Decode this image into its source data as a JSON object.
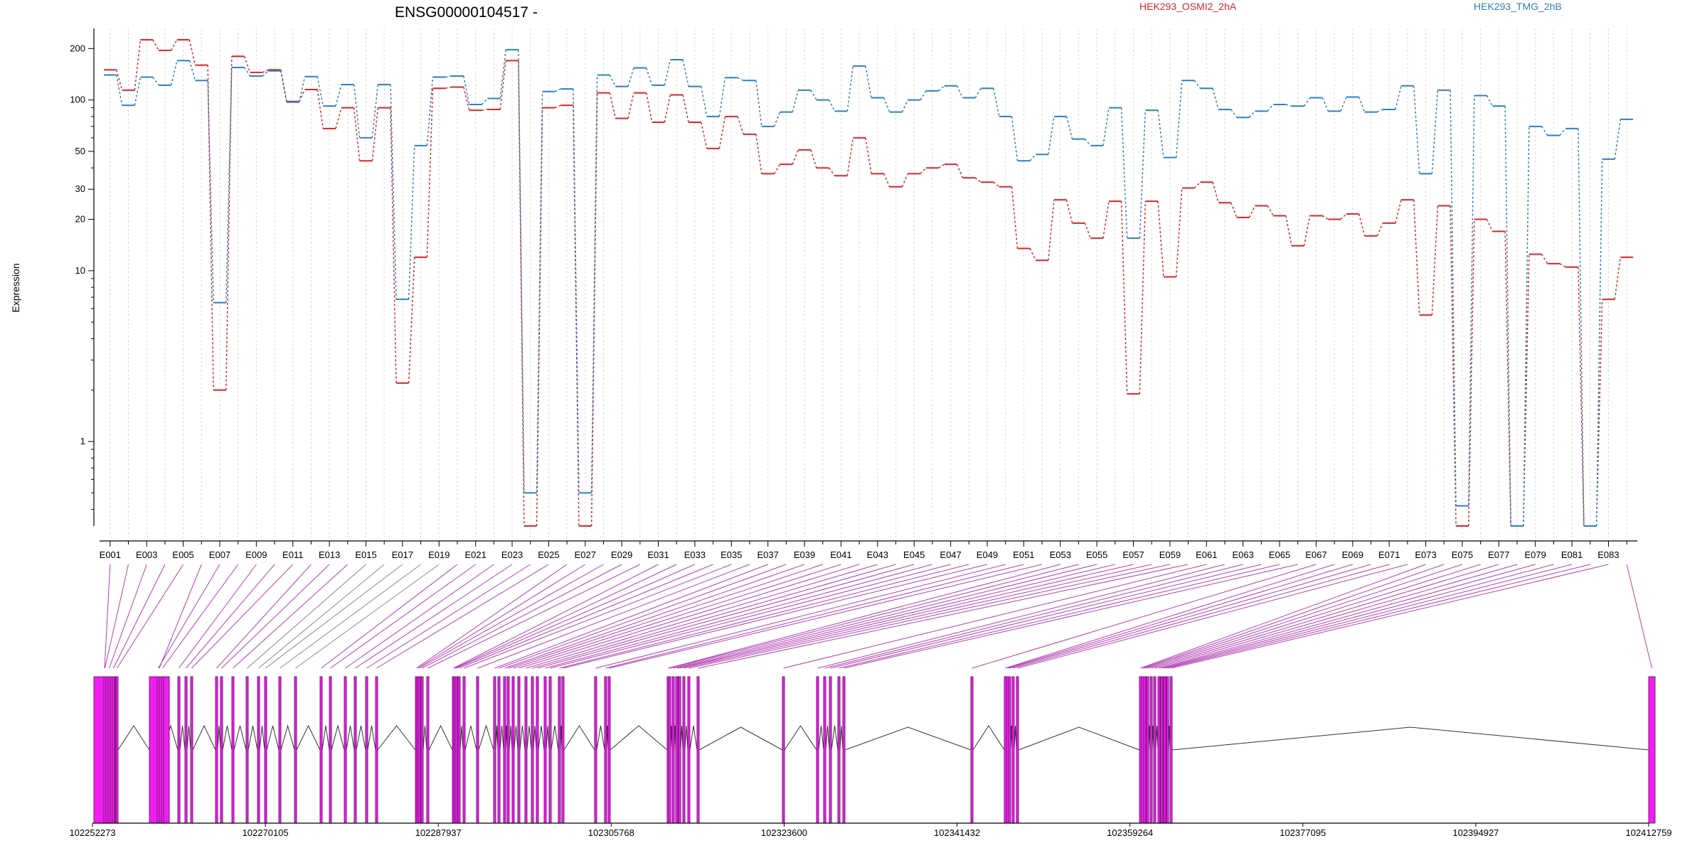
{
  "chart_data": {
    "type": "line",
    "title": "ENSG00000104517 -",
    "ylabel": "Expression",
    "y_scale": "log",
    "ylim": [
      0.32,
      250
    ],
    "ytick_labels": [
      "1",
      "10",
      "20",
      "30",
      "50",
      "100",
      "200"
    ],
    "ytick_values": [
      1,
      10,
      20,
      30,
      50,
      100,
      200
    ],
    "grid": "vertical dashed guides per exon",
    "legend_position": "top",
    "x": [
      "E001",
      "E002",
      "E003",
      "E004",
      "E005",
      "E006",
      "E007",
      "E008",
      "E009",
      "E010",
      "E011",
      "E012",
      "E013",
      "E014",
      "E015",
      "E016",
      "E017",
      "E018",
      "E019",
      "E020",
      "E021",
      "E022",
      "E023",
      "E024",
      "E025",
      "E026",
      "E027",
      "E028",
      "E029",
      "E030",
      "E031",
      "E032",
      "E033",
      "E034",
      "E035",
      "E036",
      "E037",
      "E038",
      "E039",
      "E040",
      "E041",
      "E042",
      "E043",
      "E044",
      "E045",
      "E046",
      "E047",
      "E048",
      "E049",
      "E050",
      "E051",
      "E052",
      "E053",
      "E054",
      "E055",
      "E056",
      "E057",
      "E058",
      "E059",
      "E060",
      "E061",
      "E062",
      "E063",
      "E064",
      "E065",
      "E066",
      "E067",
      "E068",
      "E069",
      "E070",
      "E071",
      "E072",
      "E073",
      "E074",
      "E075",
      "E076",
      "E077",
      "E078",
      "E079",
      "E080",
      "E081",
      "E082",
      "E083",
      "E084"
    ],
    "xtick_labels": [
      "E001",
      "E003",
      "E005",
      "E007",
      "E009",
      "E011",
      "E013",
      "E015",
      "E017",
      "E019",
      "E021",
      "E023",
      "E025",
      "E027",
      "E029",
      "E031",
      "E033",
      "E035",
      "E037",
      "E039",
      "E041",
      "E043",
      "E045",
      "E047",
      "E049",
      "E051",
      "E053",
      "E055",
      "E057",
      "E059",
      "E061",
      "E063",
      "E065",
      "E067",
      "E069",
      "E071",
      "E073",
      "E075",
      "E077",
      "E079",
      "E081",
      "E083"
    ],
    "series": [
      {
        "name": "HEK293_OSMI2_2hA",
        "color": "#d62728",
        "values": [
          150,
          114,
          225,
          195,
          225,
          160,
          2,
          180,
          145,
          150,
          98,
          115,
          68,
          90,
          44,
          90,
          2.2,
          12,
          117,
          119,
          87,
          88,
          170,
          0.32,
          90,
          93,
          0.32,
          110,
          78,
          110,
          74,
          107,
          74,
          52,
          80,
          63,
          37,
          42,
          51,
          40,
          36,
          60,
          37,
          31,
          37,
          40,
          42,
          35,
          33,
          31,
          13.5,
          11.5,
          26,
          19,
          15.5,
          25.5,
          1.9,
          25.5,
          9.2,
          30.5,
          33,
          25,
          20.5,
          24,
          21,
          14,
          21,
          20,
          21.5,
          16,
          19,
          26,
          5.5,
          24,
          0.32,
          20,
          17,
          0.32,
          12.5,
          11,
          10.5,
          0.32,
          6.8,
          12
        ]
      },
      {
        "name": "HEK293_TMG_2hB",
        "color": "#2f7fbf",
        "values": [
          140,
          93,
          136,
          122,
          170,
          130,
          6.5,
          155,
          138,
          148,
          97,
          137,
          92,
          123,
          60,
          123,
          6.8,
          54,
          136,
          138,
          94,
          102,
          197,
          0.5,
          112,
          116,
          0.5,
          140,
          120,
          154,
          122,
          172,
          120,
          80,
          135,
          130,
          70,
          85,
          114,
          100,
          86,
          158,
          103,
          85,
          100,
          113,
          121,
          103,
          117,
          80,
          44,
          48,
          80,
          59,
          54,
          90,
          15.5,
          87,
          46,
          130,
          117,
          88,
          79,
          86,
          94,
          92,
          103,
          86,
          104,
          85,
          88,
          121,
          37,
          114,
          0.42,
          106,
          92,
          0.32,
          70,
          62,
          68,
          0.32,
          45,
          77
        ]
      }
    ],
    "gene_axis": {
      "tick_labels": [
        "102252273",
        "102270105",
        "102287937",
        "102305768",
        "102323600",
        "102341432",
        "102359264",
        "102377095",
        "102394927",
        "102412759"
      ],
      "tick_values": [
        102252273,
        102270105,
        102287937,
        102305768,
        102323600,
        102341432,
        102359264,
        102377095,
        102394927,
        102412759
      ]
    }
  },
  "colors": {
    "exon_fill": "#f01ef0",
    "exon_stroke": "#7a1a7a",
    "connector": "#b040b0",
    "connector_gray": "#888888",
    "intron": "#333333"
  }
}
